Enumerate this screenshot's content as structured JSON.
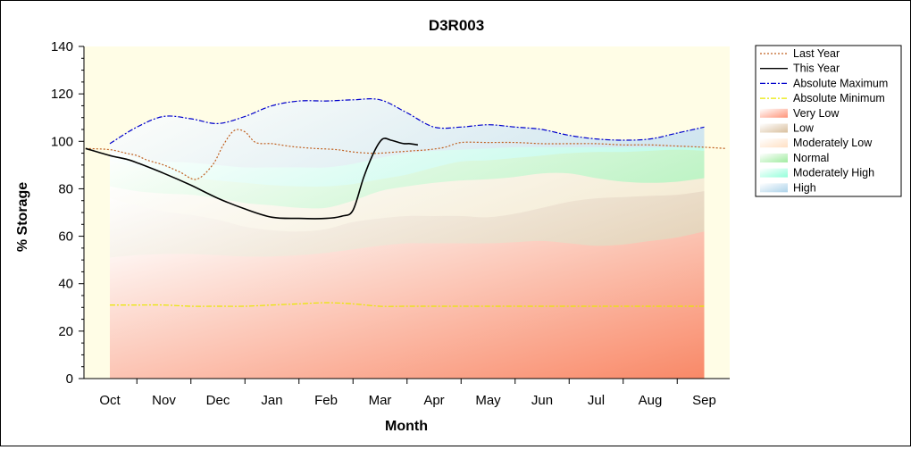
{
  "chart_data": {
    "type": "area",
    "title": "D3R003",
    "xlabel": "Month",
    "ylabel": "% Storage",
    "ylim": [
      0,
      140
    ],
    "yticks": [
      0,
      20,
      40,
      60,
      80,
      100,
      120,
      140
    ],
    "months": [
      "Oct",
      "Nov",
      "Dec",
      "Jan",
      "Feb",
      "Mar",
      "Apr",
      "May",
      "Jun",
      "Jul",
      "Aug",
      "Sep"
    ],
    "x": [
      0,
      0.5,
      1,
      1.5,
      2,
      2.5,
      3,
      3.5,
      4,
      4.5,
      5,
      5.5,
      6,
      6.5,
      7,
      7.5,
      8,
      8.5,
      9,
      9.5,
      10,
      10.5,
      11
    ],
    "bands": [
      {
        "name": "Very Low",
        "color": "#ff8060",
        "upper": [
          51,
          52,
          52.5,
          52.5,
          52,
          51.5,
          51.5,
          52,
          53,
          54.5,
          56,
          57,
          57,
          57,
          57,
          57.5,
          58,
          57,
          56,
          56.5,
          58,
          59.5,
          62
        ]
      },
      {
        "name": "Low",
        "color": "#d2b48c",
        "upper": [
          76,
          73,
          70.5,
          69,
          67,
          64,
          62.5,
          62,
          63,
          66,
          67.5,
          68.5,
          68.5,
          68.5,
          68,
          69.5,
          72,
          74.5,
          76,
          76.5,
          77,
          77.5,
          79
        ]
      },
      {
        "name": "Moderately Low",
        "color": "#ffdab9",
        "upper": [
          81,
          79,
          78,
          77.5,
          76,
          74,
          73,
          72,
          72,
          75,
          79,
          81,
          82.5,
          83.5,
          84,
          85,
          86.5,
          86.5,
          84.5,
          83,
          82.5,
          83,
          84.5
        ]
      },
      {
        "name": "Normal",
        "color": "#8ee88e",
        "upper": [
          92,
          89,
          87,
          85,
          83.5,
          82.5,
          81.5,
          81,
          81,
          82,
          84,
          86,
          89,
          91.5,
          92,
          93,
          94,
          95,
          95.5,
          95.5,
          96,
          96.5,
          96
        ]
      },
      {
        "name": "Moderately High",
        "color": "#7fffd4",
        "upper": [
          96,
          93,
          91.5,
          91,
          90,
          89,
          89,
          89,
          89,
          90.5,
          93,
          95,
          96,
          96.5,
          97,
          97.5,
          97.5,
          97.5,
          97.5,
          97.5,
          97.5,
          97.5,
          97.5
        ]
      },
      {
        "name": "High",
        "color": "#9ecbe6",
        "upper": [
          99,
          106,
          110.5,
          109.5,
          107.5,
          110.5,
          115,
          117,
          117,
          117.5,
          117.5,
          112,
          106,
          106,
          107,
          106,
          105,
          102.5,
          101,
          100.5,
          101,
          103.5,
          106
        ]
      }
    ],
    "series": [
      {
        "name": "Last Year",
        "color": "#c06020",
        "style": "dotted",
        "x": [
          -0.45,
          0,
          0.3,
          0.5,
          0.7,
          1,
          1.3,
          1.6,
          1.9,
          2.1,
          2.3,
          2.5,
          2.7,
          3.0,
          3.3,
          3.5,
          3.8,
          4.2,
          4.5,
          4.8,
          5.0,
          5.3,
          5.6,
          5.9,
          6.2,
          6.5,
          7,
          7.5,
          8,
          8.5,
          9,
          9.5,
          10,
          10.5,
          11,
          11.4
        ],
        "y": [
          97,
          96.5,
          95,
          94,
          92,
          90,
          87,
          84,
          90,
          98.5,
          104.5,
          104,
          99.5,
          99,
          98,
          97.5,
          97,
          96.5,
          95.5,
          95,
          95,
          95.5,
          96,
          96.5,
          97.5,
          99.5,
          99.5,
          99.5,
          99,
          99,
          99,
          98.5,
          98.5,
          98,
          97.5,
          97
        ]
      },
      {
        "name": "This Year",
        "color": "#000000",
        "style": "solid",
        "x": [
          -0.45,
          0,
          0.3,
          0.5,
          1.0,
          1.5,
          2.0,
          2.5,
          3.0,
          3.5,
          4.0,
          4.3,
          4.5,
          4.7,
          4.9,
          5.05,
          5.2,
          5.35,
          5.45,
          5.55,
          5.7
        ],
        "y": [
          97,
          94,
          92.5,
          91,
          86.5,
          81.5,
          76,
          71.5,
          68,
          67.5,
          67.5,
          68.5,
          71,
          85,
          96,
          101,
          100.5,
          99.5,
          99,
          99,
          98.5
        ]
      },
      {
        "name": "Absolute Maximum",
        "color": "#0000cc",
        "style": "dashdot",
        "x": [
          0,
          0.5,
          1,
          1.5,
          2,
          2.5,
          3,
          3.5,
          4,
          4.5,
          5,
          5.5,
          6,
          6.5,
          7,
          7.5,
          8,
          8.5,
          9,
          9.5,
          10,
          10.5,
          11
        ],
        "y": [
          99,
          106,
          110.5,
          109.5,
          107.5,
          110.5,
          115,
          117,
          117,
          117.5,
          117.5,
          112,
          106,
          106,
          107,
          106,
          105,
          102.5,
          101,
          100.5,
          101,
          103.5,
          106
        ]
      },
      {
        "name": "Absolute Minimum",
        "color": "#e8e800",
        "style": "dashdot",
        "x": [
          0,
          0.5,
          1,
          1.5,
          2,
          2.5,
          3,
          3.5,
          4,
          4.5,
          5,
          5.5,
          6,
          6.5,
          7,
          7.5,
          8,
          8.5,
          9,
          9.5,
          10,
          10.5,
          11
        ],
        "y": [
          31,
          31,
          31,
          30.5,
          30.5,
          30.5,
          31,
          31.5,
          32,
          31.5,
          30.5,
          30.5,
          30.5,
          30.5,
          30.5,
          30.5,
          30.5,
          30.5,
          30.5,
          30.5,
          30.5,
          30.5,
          30.5
        ]
      }
    ],
    "legend": {
      "placement": "right",
      "entries": [
        "Last Year",
        "This Year",
        "Absolute Maximum",
        "Absolute Minimum",
        "Very Low",
        "Low",
        "Moderately Low",
        "Normal",
        "Moderately High",
        "High"
      ]
    },
    "plot_background": "#fffde6",
    "grid": false
  }
}
